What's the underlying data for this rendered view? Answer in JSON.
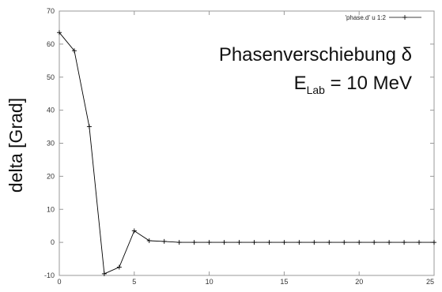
{
  "chart_data": {
    "type": "line",
    "ylabel": "delta  [Grad]",
    "xlim": [
      0,
      25
    ],
    "ylim": [
      -10,
      70
    ],
    "xticks": [
      0,
      5,
      10,
      15,
      20,
      25
    ],
    "yticks": [
      -10,
      0,
      10,
      20,
      30,
      40,
      50,
      60,
      70
    ],
    "grid": false,
    "legend_position": "top-right",
    "annotation_line1": "Phasenverschiebung δ",
    "annotation_line2_main": "E",
    "annotation_line2_sub": "Lab",
    "annotation_line2_rest": " = 10 MeV",
    "series": [
      {
        "name": "'phase.d' u 1:2",
        "color": "#000000",
        "x": [
          0,
          1,
          2,
          3,
          4,
          5,
          6,
          7,
          8,
          9,
          10,
          11,
          12,
          13,
          14,
          15,
          16,
          17,
          18,
          19,
          20,
          21,
          22,
          23,
          24,
          25
        ],
        "y": [
          63.5,
          58,
          35,
          -9.5,
          -7.5,
          3.5,
          0.5,
          0.3,
          0,
          0,
          0,
          0,
          0,
          0,
          0,
          0,
          0,
          0,
          0,
          0,
          0,
          0,
          0,
          0,
          0,
          0
        ]
      }
    ]
  }
}
